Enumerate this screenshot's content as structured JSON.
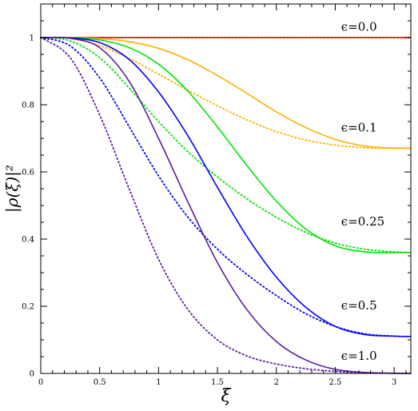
{
  "chart_data": {
    "type": "line",
    "title": "",
    "xlabel": "ξ",
    "ylabel": "|ρ(ξ)|²",
    "xlim": [
      0,
      3.1416
    ],
    "ylim": [
      0,
      1.1
    ],
    "x_ticks": [
      0,
      0.5,
      1,
      1.5,
      2,
      2.5,
      3
    ],
    "x_tick_labels": [
      "0",
      "0.5",
      "1",
      "1.5",
      "2",
      "2.5",
      "3"
    ],
    "y_ticks": [
      0,
      0.2,
      0.4,
      0.6,
      0.8,
      1
    ],
    "y_tick_labels": [
      "0",
      "0.2",
      "0.4",
      "0.6",
      "0.8",
      "1"
    ],
    "grid": false,
    "legend": "none",
    "annotations": [
      {
        "text": "ϵ=0.0",
        "x": 2.55,
        "y": 1.02
      },
      {
        "text": "ϵ=0.1",
        "x": 2.55,
        "y": 0.72
      },
      {
        "text": "ϵ=0.25",
        "x": 2.55,
        "y": 0.44
      },
      {
        "text": "ϵ=0.5",
        "x": 2.55,
        "y": 0.19
      },
      {
        "text": "ϵ=1.0",
        "x": 2.55,
        "y": 0.04
      }
    ],
    "series": [
      {
        "epsilon": 0.0,
        "style": "solid",
        "color": "#ff0000",
        "x": [
          0,
          0.5,
          1,
          1.5,
          2,
          2.5,
          3.1416
        ],
        "y": [
          1,
          1,
          1,
          1,
          1,
          1,
          1
        ]
      },
      {
        "epsilon": 0.0,
        "style": "dotted",
        "color": "#ff0000",
        "x": [
          0,
          0.5,
          1,
          1.5,
          2,
          2.5,
          3.1416
        ],
        "y": [
          1,
          1,
          1,
          1,
          1,
          1,
          1
        ]
      },
      {
        "epsilon": 0.1,
        "style": "solid",
        "color": "#ffb000",
        "x": [
          0,
          0.25,
          0.5,
          0.75,
          1,
          1.25,
          1.5,
          1.75,
          2,
          2.25,
          2.5,
          2.75,
          3,
          3.1416
        ],
        "y": [
          1,
          1,
          0.997,
          0.988,
          0.968,
          0.934,
          0.887,
          0.834,
          0.779,
          0.732,
          0.697,
          0.677,
          0.671,
          0.671
        ]
      },
      {
        "epsilon": 0.1,
        "style": "dotted",
        "color": "#ffb000",
        "x": [
          0,
          0.25,
          0.5,
          0.75,
          1,
          1.25,
          1.5,
          1.75,
          2,
          2.25,
          2.5,
          2.75,
          3,
          3.1416
        ],
        "y": [
          1,
          0.997,
          0.976,
          0.938,
          0.891,
          0.843,
          0.797,
          0.755,
          0.72,
          0.695,
          0.68,
          0.672,
          0.67,
          0.67
        ]
      },
      {
        "epsilon": 0.25,
        "style": "solid",
        "color": "#00e600",
        "x": [
          0,
          0.25,
          0.5,
          0.75,
          1,
          1.25,
          1.5,
          1.75,
          2,
          2.25,
          2.5,
          2.75,
          3,
          3.1416
        ],
        "y": [
          1,
          1,
          0.993,
          0.97,
          0.921,
          0.84,
          0.734,
          0.619,
          0.513,
          0.43,
          0.38,
          0.362,
          0.36,
          0.36
        ]
      },
      {
        "epsilon": 0.25,
        "style": "dotted",
        "color": "#00e600",
        "x": [
          0,
          0.25,
          0.5,
          0.75,
          1,
          1.25,
          1.5,
          1.75,
          2,
          2.25,
          2.5,
          2.75,
          3,
          3.1416
        ],
        "y": [
          1,
          0.99,
          0.94,
          0.85,
          0.75,
          0.66,
          0.585,
          0.52,
          0.465,
          0.42,
          0.388,
          0.37,
          0.362,
          0.36
        ]
      },
      {
        "epsilon": 0.5,
        "style": "solid",
        "color": "#0000ff",
        "x": [
          0,
          0.25,
          0.5,
          0.75,
          1,
          1.25,
          1.5,
          1.75,
          2,
          2.25,
          2.5,
          2.75,
          3,
          3.1416
        ],
        "y": [
          1,
          0.999,
          0.985,
          0.935,
          0.838,
          0.707,
          0.554,
          0.408,
          0.287,
          0.197,
          0.14,
          0.116,
          0.111,
          0.11
        ]
      },
      {
        "epsilon": 0.5,
        "style": "dotted",
        "color": "#0000ff",
        "x": [
          0,
          0.25,
          0.5,
          0.75,
          1,
          1.25,
          1.5,
          1.75,
          2,
          2.25,
          2.5,
          2.75,
          3,
          3.1416
        ],
        "y": [
          1,
          0.975,
          0.88,
          0.735,
          0.588,
          0.465,
          0.37,
          0.295,
          0.232,
          0.178,
          0.14,
          0.118,
          0.111,
          0.11
        ]
      },
      {
        "epsilon": 1.0,
        "style": "solid",
        "color": "#5a1aa0",
        "x": [
          0,
          0.25,
          0.5,
          0.75,
          1,
          1.25,
          1.5,
          1.75,
          2,
          2.25,
          2.5,
          2.75,
          3,
          3.1416
        ],
        "y": [
          1,
          0.998,
          0.97,
          0.87,
          0.7,
          0.51,
          0.33,
          0.19,
          0.095,
          0.04,
          0.012,
          0.003,
          0.0005,
          0
        ]
      },
      {
        "epsilon": 1.0,
        "style": "dotted",
        "color": "#5a1aa0",
        "x": [
          0,
          0.25,
          0.5,
          0.75,
          1,
          1.25,
          1.5,
          1.75,
          2,
          2.25,
          2.5,
          2.75,
          3,
          3.1416
        ],
        "y": [
          1,
          0.94,
          0.77,
          0.55,
          0.34,
          0.19,
          0.1,
          0.052,
          0.028,
          0.014,
          0.006,
          0.002,
          0.0005,
          0
        ]
      }
    ]
  }
}
